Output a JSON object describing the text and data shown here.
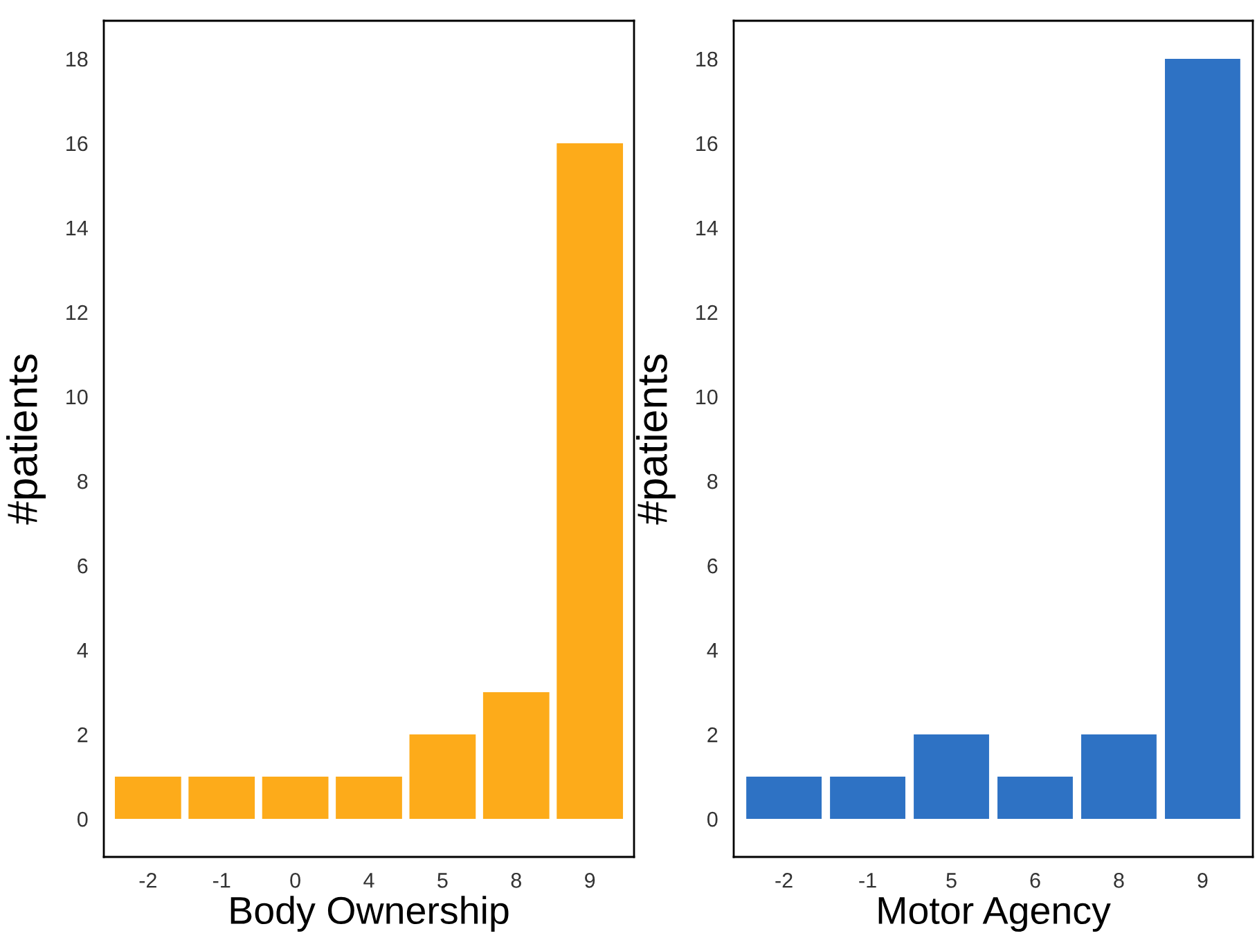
{
  "chart_data": [
    {
      "type": "bar",
      "xlabel": "Body Ownership",
      "ylabel": "#patients",
      "categories": [
        "-2",
        "-1",
        "0",
        "4",
        "5",
        "8",
        "9"
      ],
      "values": [
        1,
        1,
        1,
        1,
        2,
        3,
        16
      ],
      "color": "#fdab1a",
      "ylim": [
        -0.9,
        18.9
      ],
      "yticks": [
        0,
        2,
        4,
        6,
        8,
        10,
        12,
        14,
        16,
        18
      ],
      "grid": false,
      "legend": false
    },
    {
      "type": "bar",
      "xlabel": "Motor Agency",
      "ylabel": "#patients",
      "categories": [
        "-2",
        "-1",
        "5",
        "6",
        "8",
        "9"
      ],
      "values": [
        1,
        1,
        2,
        1,
        2,
        18
      ],
      "color": "#2e72c4",
      "ylim": [
        -0.9,
        18.9
      ],
      "yticks": [
        0,
        2,
        4,
        6,
        8,
        10,
        12,
        14,
        16,
        18
      ],
      "grid": false,
      "legend": false
    }
  ]
}
